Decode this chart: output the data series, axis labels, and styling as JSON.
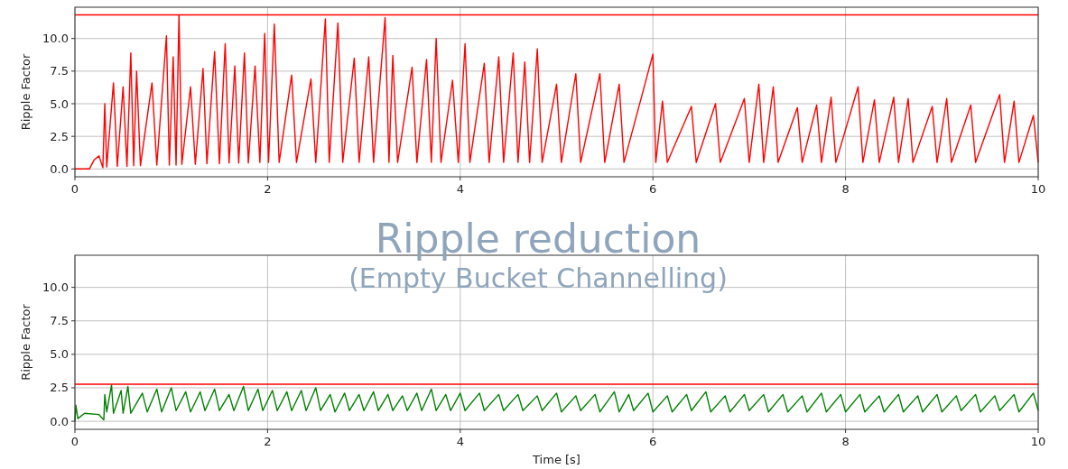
{
  "chart_data": [
    {
      "type": "line",
      "ylabel": "Ripple Factor",
      "grid": true,
      "xlim": [
        0,
        10
      ],
      "ylim": [
        -0.6,
        12.4
      ],
      "xticks": [
        0,
        2,
        4,
        6,
        8,
        10
      ],
      "yticks": [
        {
          "value": 0,
          "label": "0.0"
        },
        {
          "value": 2.5,
          "label": "2.5"
        },
        {
          "value": 5,
          "label": "5.0"
        },
        {
          "value": 7.5,
          "label": "7.5"
        },
        {
          "value": 10,
          "label": "10.0"
        }
      ],
      "ref_lines": [
        {
          "axis": "y",
          "value": 11.82,
          "color": "#ff0000"
        }
      ],
      "series": [
        {
          "color": "#ff0000",
          "x": [
            0,
            0.15,
            0.2,
            0.25,
            0.29,
            0.31,
            0.33,
            0.4,
            0.44,
            0.5,
            0.54,
            0.58,
            0.61,
            0.64,
            0.68,
            0.8,
            0.85,
            0.95,
            0.98,
            1.02,
            1.05,
            1.08,
            1.11,
            1.2,
            1.25,
            1.33,
            1.37,
            1.45,
            1.5,
            1.56,
            1.6,
            1.66,
            1.7,
            1.76,
            1.8,
            1.87,
            1.92,
            1.97,
            2.01,
            2.07,
            2.12,
            2.25,
            2.3,
            2.45,
            2.5,
            2.6,
            2.64,
            2.73,
            2.78,
            2.9,
            2.95,
            3.05,
            3.1,
            3.22,
            3.26,
            3.3,
            3.35,
            3.5,
            3.55,
            3.65,
            3.7,
            3.75,
            3.8,
            3.92,
            3.98,
            4.05,
            4.1,
            4.25,
            4.3,
            4.4,
            4.45,
            4.55,
            4.6,
            4.67,
            4.72,
            4.8,
            4.85,
            5.0,
            5.05,
            5.2,
            5.25,
            5.45,
            5.5,
            5.65,
            5.7,
            6.0,
            6.03,
            6.1,
            6.15,
            6.4,
            6.45,
            6.65,
            6.7,
            6.95,
            7.0,
            7.1,
            7.15,
            7.25,
            7.3,
            7.5,
            7.55,
            7.7,
            7.75,
            7.85,
            7.9,
            8.13,
            8.18,
            8.3,
            8.35,
            8.5,
            8.55,
            8.65,
            8.7,
            8.9,
            8.95,
            9.05,
            9.1,
            9.3,
            9.35,
            9.6,
            9.65,
            9.75,
            9.8,
            9.95,
            10
          ],
          "values": [
            0,
            0,
            0.7,
            1.0,
            0.1,
            5.0,
            0.15,
            6.6,
            0.2,
            6.3,
            0.2,
            8.9,
            0.25,
            7.5,
            0.25,
            6.6,
            0.3,
            10.2,
            0.3,
            8.6,
            0.3,
            11.8,
            0.35,
            6.3,
            0.35,
            7.7,
            0.4,
            9.0,
            0.4,
            9.6,
            0.45,
            7.9,
            0.45,
            8.9,
            0.45,
            7.9,
            0.5,
            10.4,
            0.5,
            11.1,
            0.5,
            7.2,
            0.5,
            6.9,
            0.5,
            11.5,
            0.5,
            11.2,
            0.5,
            8.5,
            0.5,
            8.6,
            0.5,
            11.6,
            0.5,
            8.7,
            0.5,
            7.8,
            0.5,
            8.4,
            0.5,
            10.0,
            0.5,
            6.8,
            0.5,
            9.6,
            0.5,
            8.1,
            0.5,
            8.6,
            0.5,
            8.9,
            0.5,
            8.2,
            0.5,
            9.2,
            0.5,
            6.5,
            0.5,
            7.3,
            0.5,
            7.3,
            0.5,
            6.5,
            0.5,
            8.8,
            0.5,
            5.2,
            0.5,
            4.8,
            0.5,
            5.0,
            0.5,
            5.4,
            0.5,
            6.5,
            0.5,
            6.3,
            0.5,
            4.7,
            0.5,
            4.9,
            0.5,
            5.5,
            0.5,
            6.3,
            0.5,
            5.3,
            0.5,
            5.5,
            0.5,
            5.4,
            0.5,
            4.8,
            0.5,
            5.4,
            0.5,
            4.9,
            0.5,
            5.7,
            0.5,
            5.2,
            0.5,
            4.1,
            0.5
          ]
        }
      ]
    },
    {
      "type": "line",
      "ylabel": "Ripple Factor",
      "xlabel": "Time [s]",
      "grid": true,
      "xlim": [
        0,
        10
      ],
      "ylim": [
        -0.6,
        12.4
      ],
      "xticks": [
        0,
        2,
        4,
        6,
        8,
        10
      ],
      "yticks": [
        {
          "value": 0,
          "label": "0.0"
        },
        {
          "value": 2.5,
          "label": "2.5"
        },
        {
          "value": 5,
          "label": "5.0"
        },
        {
          "value": 7.5,
          "label": "7.5"
        },
        {
          "value": 10,
          "label": "10.0"
        }
      ],
      "ref_lines": [
        {
          "axis": "y",
          "value": 2.77,
          "color": "#ff0000"
        }
      ],
      "annotations": [
        "Ripple reduction",
        "(Empty Bucket Channelling)"
      ],
      "series": [
        {
          "color": "#008000",
          "x": [
            0,
            0.01,
            0.03,
            0.1,
            0.25,
            0.3,
            0.31,
            0.33,
            0.38,
            0.4,
            0.48,
            0.5,
            0.55,
            0.58,
            0.7,
            0.75,
            0.85,
            0.9,
            1.0,
            1.05,
            1.15,
            1.2,
            1.3,
            1.35,
            1.45,
            1.5,
            1.6,
            1.65,
            1.75,
            1.8,
            1.9,
            1.95,
            2.05,
            2.1,
            2.2,
            2.25,
            2.35,
            2.4,
            2.5,
            2.55,
            2.65,
            2.7,
            2.8,
            2.85,
            2.95,
            3.0,
            3.1,
            3.15,
            3.25,
            3.3,
            3.4,
            3.45,
            3.55,
            3.6,
            3.7,
            3.75,
            3.85,
            3.9,
            4.0,
            4.05,
            4.2,
            4.25,
            4.4,
            4.45,
            4.6,
            4.65,
            4.8,
            4.85,
            5.0,
            5.05,
            5.2,
            5.25,
            5.4,
            5.45,
            5.6,
            5.65,
            5.75,
            5.8,
            5.95,
            6.0,
            6.15,
            6.2,
            6.35,
            6.4,
            6.55,
            6.6,
            6.75,
            6.8,
            6.95,
            7.0,
            7.15,
            7.2,
            7.35,
            7.4,
            7.55,
            7.6,
            7.75,
            7.8,
            7.95,
            8.0,
            8.15,
            8.2,
            8.35,
            8.4,
            8.55,
            8.6,
            8.75,
            8.8,
            8.95,
            9.0,
            9.15,
            9.2,
            9.35,
            9.4,
            9.55,
            9.6,
            9.75,
            9.8,
            9.95,
            10
          ],
          "values": [
            0,
            1.2,
            0.2,
            0.6,
            0.5,
            0.1,
            2.0,
            0.7,
            2.7,
            0.6,
            2.3,
            0.6,
            2.6,
            0.6,
            2.1,
            0.7,
            2.4,
            0.7,
            2.5,
            0.8,
            2.2,
            0.7,
            2.2,
            0.8,
            2.4,
            0.8,
            2.0,
            0.8,
            2.6,
            0.8,
            2.4,
            0.8,
            2.3,
            0.8,
            2.2,
            0.8,
            2.3,
            0.8,
            2.5,
            0.8,
            2.0,
            0.7,
            2.1,
            0.8,
            2.0,
            0.8,
            2.2,
            0.8,
            2.0,
            0.8,
            1.9,
            0.8,
            2.1,
            0.8,
            2.4,
            0.8,
            2.0,
            0.8,
            2.1,
            0.8,
            2.1,
            0.8,
            2.0,
            0.8,
            2.0,
            0.8,
            1.9,
            0.8,
            2.1,
            0.7,
            1.9,
            0.8,
            2.0,
            0.7,
            2.2,
            0.7,
            2.0,
            0.8,
            2.1,
            0.7,
            1.9,
            0.7,
            2.0,
            0.8,
            2.2,
            0.7,
            1.9,
            0.7,
            2.0,
            0.8,
            2.0,
            0.7,
            2.0,
            0.7,
            1.9,
            0.7,
            2.1,
            0.7,
            2.0,
            0.7,
            2.0,
            0.7,
            1.9,
            0.7,
            2.0,
            0.7,
            1.9,
            0.7,
            2.0,
            0.7,
            1.9,
            0.8,
            2.0,
            0.7,
            1.9,
            0.8,
            2.0,
            0.7,
            2.1,
            0.8
          ]
        }
      ]
    }
  ]
}
